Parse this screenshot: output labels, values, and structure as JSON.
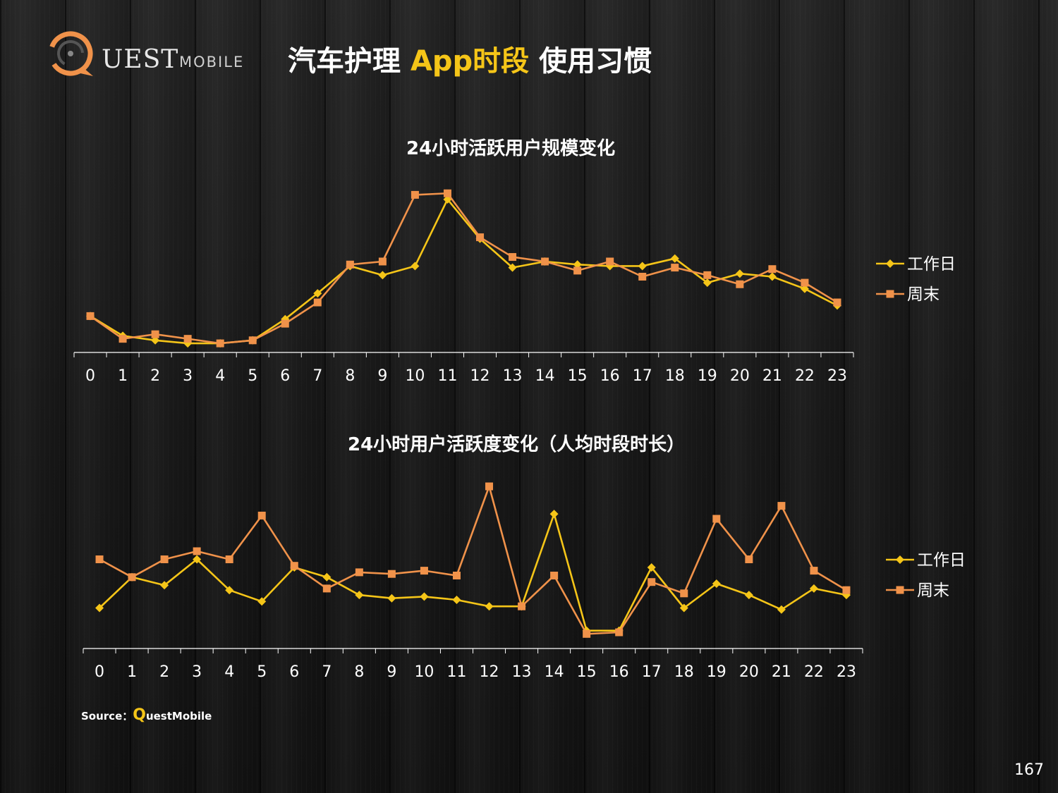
{
  "logo": {
    "text": "UEST",
    "sub": "MOBILE"
  },
  "title": {
    "part1": "汽车护理 ",
    "highlight": "App时段",
    "part2": " 使用习惯"
  },
  "colors": {
    "workday": "#f5c518",
    "weekend": "#f0924a",
    "axis": "#ffffff",
    "text": "#ffffff"
  },
  "chart_data": [
    {
      "type": "line",
      "title": "24小时活跃用户规模变化",
      "x": [
        "0",
        "1",
        "2",
        "3",
        "4",
        "5",
        "6",
        "7",
        "8",
        "9",
        "10",
        "11",
        "12",
        "13",
        "14",
        "15",
        "16",
        "17",
        "18",
        "19",
        "20",
        "21",
        "22",
        "23"
      ],
      "ylim": [
        0,
        100
      ],
      "grid": false,
      "legend": "right",
      "series": [
        {
          "name": "工作日",
          "marker": "diamond",
          "values": [
            24,
            11,
            8,
            6,
            6,
            8,
            22,
            39,
            57,
            51,
            57,
            101,
            75,
            56,
            60,
            58,
            57,
            57,
            62,
            46,
            52,
            50,
            42,
            31
          ]
        },
        {
          "name": "周末",
          "marker": "square",
          "values": [
            24,
            9,
            12,
            9,
            6,
            8,
            19,
            33,
            58,
            60,
            104,
            105,
            76,
            63,
            60,
            54,
            60,
            50,
            56,
            51,
            45,
            55,
            46,
            33
          ]
        }
      ]
    },
    {
      "type": "line",
      "title": "24小时用户活跃度变化（人均时段时长）",
      "x": [
        "0",
        "1",
        "2",
        "3",
        "4",
        "5",
        "6",
        "7",
        "8",
        "9",
        "10",
        "11",
        "12",
        "13",
        "14",
        "15",
        "16",
        "17",
        "18",
        "19",
        "20",
        "21",
        "22",
        "23"
      ],
      "ylim": [
        0,
        100
      ],
      "grid": false,
      "legend": "right",
      "series": [
        {
          "name": "工作日",
          "marker": "diamond",
          "values": [
            25,
            44,
            39,
            55,
            36,
            29,
            50,
            44,
            33,
            31,
            32,
            30,
            26,
            26,
            83,
            11,
            11,
            50,
            25,
            40,
            33,
            24,
            37,
            33
          ]
        },
        {
          "name": "周末",
          "marker": "square",
          "values": [
            55,
            44,
            55,
            60,
            55,
            82,
            51,
            37,
            47,
            46,
            48,
            45,
            100,
            26,
            45,
            9,
            10,
            41,
            34,
            80,
            55,
            88,
            48,
            36
          ]
        }
      ]
    }
  ],
  "source": {
    "label": "Source：",
    "q": "Q",
    "rest": "uestMobile"
  },
  "page_number": "167"
}
